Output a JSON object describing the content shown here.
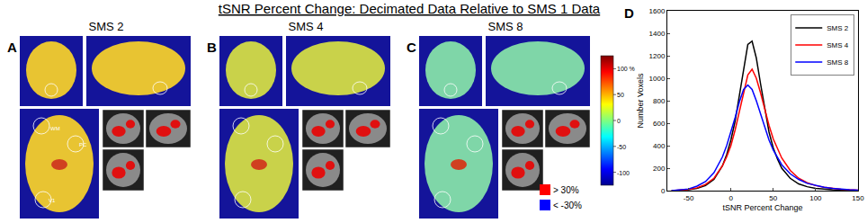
{
  "title": "tSNR Percent Change: Decimated Data Relative to SMS 1 Data",
  "image_panels": [
    {
      "letter": "A",
      "title": "SMS 2",
      "color": "#e8c432",
      "roi_labels": [
        "WM",
        "PC",
        "V1"
      ]
    },
    {
      "letter": "B",
      "title": "SMS 4",
      "color": "#c9d24a",
      "roi_labels": []
    },
    {
      "letter": "C",
      "title": "SMS 8",
      "color": "#7fd6a8",
      "roi_labels": []
    }
  ],
  "colorbar": {
    "range": [
      -125,
      125
    ],
    "ticks": [
      {
        "value": 100,
        "label": "100 %"
      },
      50,
      0,
      -50,
      -100
    ]
  },
  "mask_legend": [
    {
      "label": "> 30%",
      "color": "#ff0000"
    },
    {
      "label": "< -30%",
      "color": "#0000ff"
    }
  ],
  "chart_data": {
    "letter": "D",
    "type": "line",
    "x_label": "tSNR Percent Change",
    "y_label": "Number Voxels",
    "x": [
      -70,
      -60,
      -50,
      -40,
      -30,
      -20,
      -10,
      -5,
      0,
      5,
      10,
      15,
      20,
      25,
      30,
      35,
      40,
      45,
      50,
      55,
      60,
      70,
      80,
      90,
      100,
      110,
      120,
      130,
      140,
      150
    ],
    "series": [
      {
        "name": "SMS 2",
        "color": "#000000",
        "values": [
          0,
          2,
          8,
          20,
          45,
          100,
          220,
          320,
          450,
          620,
          850,
          1100,
          1300,
          1330,
          1180,
          950,
          720,
          520,
          380,
          280,
          200,
          110,
          60,
          35,
          20,
          12,
          8,
          5,
          3,
          2
        ]
      },
      {
        "name": "SMS 4",
        "color": "#ff0000",
        "values": [
          0,
          3,
          10,
          25,
          55,
          110,
          220,
          300,
          400,
          540,
          700,
          880,
          1030,
          1080,
          1000,
          870,
          720,
          580,
          460,
          370,
          290,
          180,
          110,
          70,
          45,
          30,
          20,
          13,
          8,
          5
        ]
      },
      {
        "name": "SMS 8",
        "color": "#0000ff",
        "values": [
          0,
          5,
          15,
          40,
          80,
          160,
          300,
          400,
          520,
          650,
          790,
          900,
          940,
          900,
          800,
          680,
          560,
          450,
          360,
          290,
          230,
          150,
          100,
          65,
          45,
          30,
          20,
          13,
          8,
          5
        ]
      }
    ],
    "xlim": [
      -75,
      150
    ],
    "xticks": [
      -50,
      0,
      50,
      100,
      150
    ],
    "ylim": [
      0,
      1600
    ],
    "yticks": [
      0,
      200,
      400,
      600,
      800,
      1000,
      1200,
      1400,
      1600
    ],
    "grid": false,
    "legend": "top-right"
  }
}
